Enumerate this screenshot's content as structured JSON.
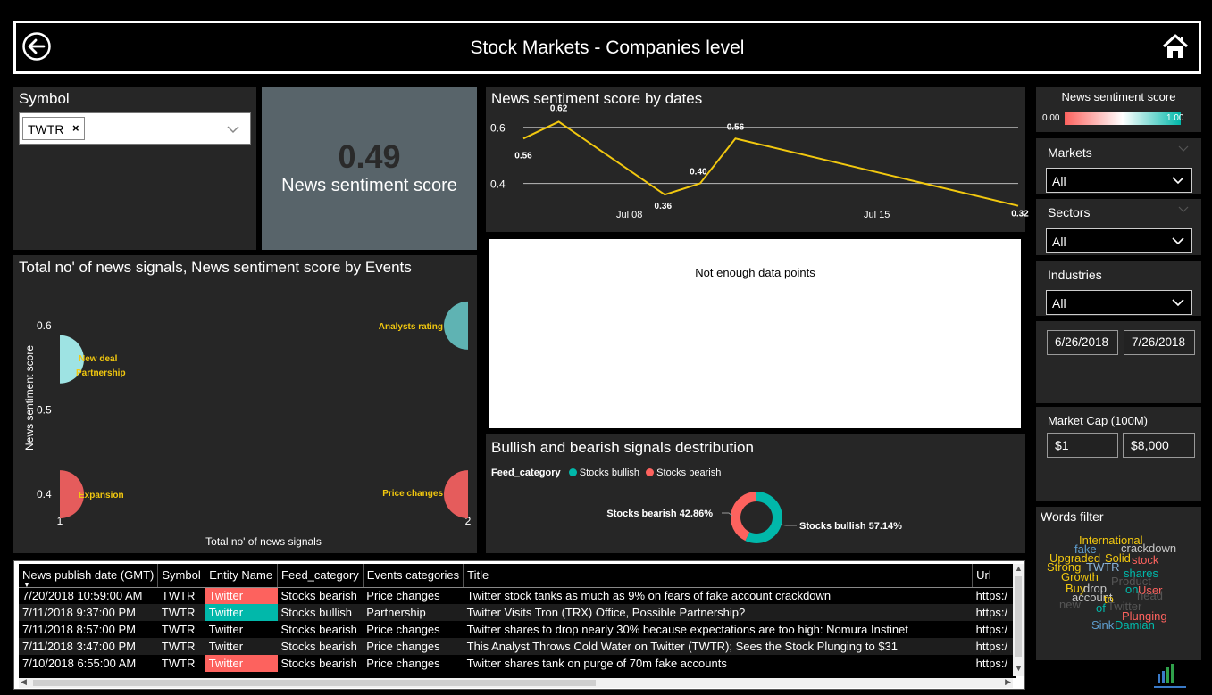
{
  "header": {
    "title": "Stock Markets - Companies level"
  },
  "symbol_slicer": {
    "title": "Symbol",
    "chip": "TWTR"
  },
  "kpi": {
    "value": "0.49",
    "label": "News sentiment score"
  },
  "line_chart": {
    "title": "News sentiment score by dates",
    "y_ticks": [
      "0.6",
      "0.4"
    ],
    "x_ticks": [
      "Jul 08",
      "Jul 15"
    ],
    "labels": [
      "0.56",
      "0.62",
      "0.36",
      "0.40",
      "0.56",
      "0.32"
    ]
  },
  "empty_visual": {
    "message": "Not enough data points"
  },
  "scatter": {
    "title": "Total no' of news signals, News sentiment score by Events",
    "y_label": "News sentiment score",
    "x_label": "Total no' of news signals",
    "y_ticks": [
      "0.6",
      "0.5",
      "0.4"
    ],
    "x_ticks": [
      "1",
      "2"
    ],
    "points": [
      {
        "label": "Analysts rating"
      },
      {
        "label": "New deal"
      },
      {
        "label": "Partnership"
      },
      {
        "label": "Expansion"
      },
      {
        "label": "Price changes"
      }
    ]
  },
  "donut": {
    "title": "Bullish and bearish signals destribution",
    "legend_title": "Feed_category",
    "legend": [
      "Stocks bullish",
      "Stocks bearish"
    ],
    "bearish_label": "Stocks bearish 42.86%",
    "bullish_label": "Stocks bullish 57.14%"
  },
  "chart_data": [
    {
      "type": "line",
      "title": "News sentiment score by dates",
      "x_ticks": [
        "Jul 08",
        "Jul 15"
      ],
      "x_day": [
        5,
        6,
        9,
        10,
        11,
        19
      ],
      "values": [
        0.56,
        0.62,
        0.36,
        0.4,
        0.56,
        0.32
      ],
      "ylim": [
        0.3,
        0.65
      ],
      "color": "#f2c80f"
    },
    {
      "type": "scatter",
      "title": "Total no' of news signals, News sentiment score by Events",
      "xlabel": "Total no' of news signals",
      "ylabel": "News sentiment score",
      "xlim": [
        1,
        2
      ],
      "ylim": [
        0.38,
        0.62
      ],
      "points": [
        {
          "label": "Analysts rating",
          "x": 2,
          "y": 0.6,
          "color": "#5fb3b3"
        },
        {
          "label": "New deal / Partnership",
          "x": 1,
          "y": 0.56,
          "color": "#9ee3e3"
        },
        {
          "label": "Expansion",
          "x": 1,
          "y": 0.4,
          "color": "#e55c5c"
        },
        {
          "label": "Price changes",
          "x": 2,
          "y": 0.4,
          "color": "#e55c5c"
        }
      ]
    },
    {
      "type": "pie",
      "title": "Bullish and bearish signals destribution",
      "categories": [
        "Stocks bullish",
        "Stocks bearish"
      ],
      "values": [
        57.14,
        42.86
      ],
      "colors": [
        "#01b8aa",
        "#fd625e"
      ]
    }
  ],
  "sidebar": {
    "sentiment_title": "News sentiment score",
    "sentiment_min": "0.00",
    "sentiment_max": "1.00",
    "markets": {
      "title": "Markets",
      "value": "All"
    },
    "sectors": {
      "title": "Sectors",
      "value": "All"
    },
    "industries": {
      "title": "Industries",
      "value": "All"
    },
    "date_from": "6/26/2018",
    "date_to": "7/26/2018",
    "market_cap": {
      "title": "Market Cap (100M)",
      "min": "$1",
      "max": "$8,000"
    },
    "words_filter": {
      "title": "Words filter",
      "words": [
        "International",
        "fake",
        "crackdown",
        "Upgraded",
        "Solid",
        "stock",
        "Strong",
        "TWTR",
        "shares",
        "Growth",
        "Product",
        "Buy",
        "drop",
        "on",
        "User",
        "account",
        "to",
        "head",
        "new",
        "of",
        "Twitter",
        "Plunging",
        "Sink",
        "Damian"
      ]
    }
  },
  "table": {
    "columns": [
      "News publish date (GMT)",
      "Symbol",
      "Entity Name",
      "Feed_category",
      "Events categories",
      "Title",
      "Url"
    ],
    "rows": [
      [
        "7/20/2018 10:59:00 AM",
        "TWTR",
        "Twitter",
        "Stocks bearish",
        "Price changes",
        "Twitter stock tanks as much as 9% on fears of fake account crackdown",
        "https:/"
      ],
      [
        "7/11/2018 9:37:00 PM",
        "TWTR",
        "Twitter",
        "Stocks bullish",
        "Partnership",
        "Twitter Visits Tron (TRX) Office, Possible Partnership?",
        "https:/"
      ],
      [
        "7/11/2018 8:57:00 PM",
        "TWTR",
        "Twitter",
        "Stocks bearish",
        "Price changes",
        "Twitter shares to drop nearly 30% because expectations are too high: Nomura Instinet",
        "https:/"
      ],
      [
        "7/11/2018 3:47:00 PM",
        "TWTR",
        "Twitter",
        "Stocks bearish",
        "Price changes",
        "This Analyst Throws Cold Water on Twitter (TWTR); Sees the Stock Plunging to $31",
        "https:/"
      ],
      [
        "7/10/2018 6:55:00 AM",
        "TWTR",
        "Twitter",
        "Stocks bearish",
        "Price changes",
        "Twitter shares tank on purge of 70m fake accounts",
        "https:/"
      ]
    ]
  }
}
